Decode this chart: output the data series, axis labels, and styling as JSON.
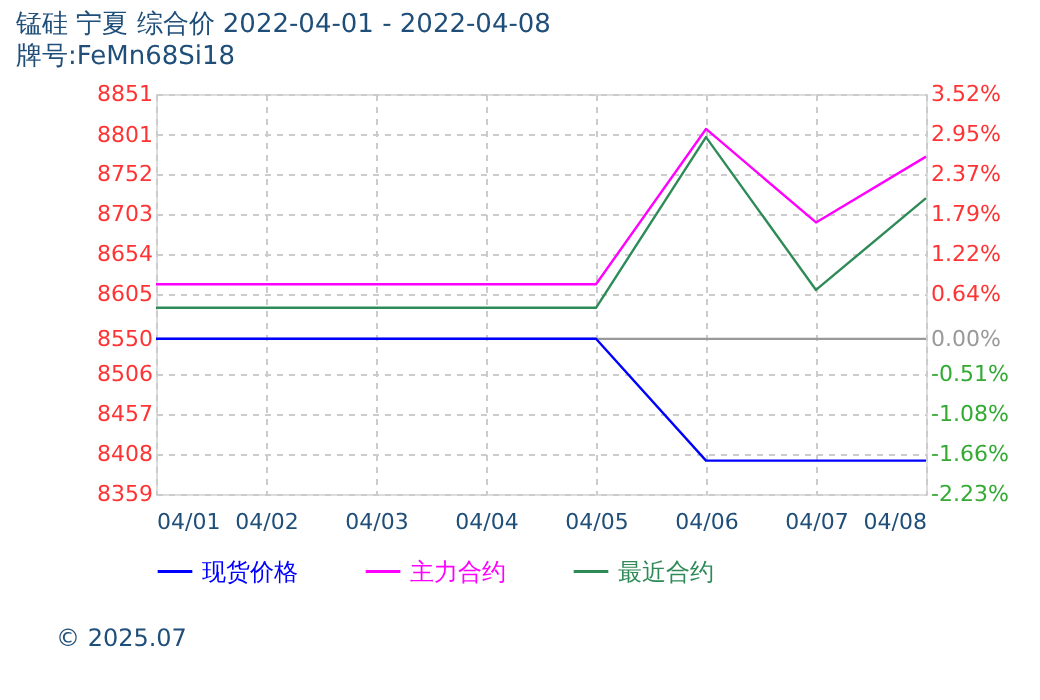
{
  "chart_data": {
    "type": "line",
    "title": "锰硅  宁夏  综合价  2022-04-01 - 2022-04-08",
    "subtitle": "牌号:FeMn68Si18",
    "categories": [
      "04/01",
      "04/02",
      "04/03",
      "04/04",
      "04/05",
      "04/06",
      "04/07",
      "04/08"
    ],
    "series": [
      {
        "name": "现货价格",
        "color": "#0000ff",
        "values": [
          8550,
          8550,
          8550,
          8550,
          8550,
          8400,
          8400,
          8400
        ]
      },
      {
        "name": "主力合约",
        "color": "#ff00ff",
        "values": [
          8617,
          8617,
          8617,
          8617,
          8617,
          8808,
          8693,
          8774
        ]
      },
      {
        "name": "最近合约",
        "color": "#2e8b57",
        "values": [
          8588,
          8588,
          8588,
          8588,
          8588,
          8798,
          8610,
          8723
        ]
      }
    ],
    "ylim": [
      8359,
      8851
    ],
    "yticks": [
      8359,
      8408,
      8457,
      8506,
      8550,
      8605,
      8654,
      8703,
      8752,
      8801,
      8851
    ],
    "y2lim": [
      -2.23,
      3.52
    ],
    "y2ticks": [
      {
        "value": -2.23,
        "label": "-2.23%"
      },
      {
        "value": -1.66,
        "label": "-1.66%"
      },
      {
        "value": -1.08,
        "label": "-1.08%"
      },
      {
        "value": -0.51,
        "label": "-0.51%"
      },
      {
        "value": 0,
        "label": "0.00%"
      },
      {
        "value": 0.64,
        "label": "0.64%"
      },
      {
        "value": 1.22,
        "label": "1.22%"
      },
      {
        "value": 1.79,
        "label": "1.79%"
      },
      {
        "value": 2.37,
        "label": "2.37%"
      },
      {
        "value": 2.95,
        "label": "2.95%"
      },
      {
        "value": 3.52,
        "label": "3.52%"
      }
    ],
    "ref_lines": [
      {
        "axis": "y2",
        "value": 0,
        "color": "#999999"
      }
    ],
    "grid": true,
    "legend": "bottom",
    "line_style": "solid",
    "marker": "none",
    "annotations": [
      "© 2025.07"
    ]
  }
}
